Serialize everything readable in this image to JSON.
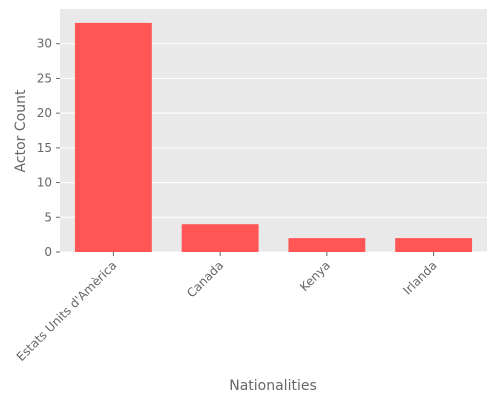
{
  "chart_data": {
    "type": "bar",
    "categories": [
      "Estats Units d'Amèrica",
      "Canada",
      "Kenya",
      "Irlanda"
    ],
    "values": [
      33,
      4,
      2,
      2
    ],
    "xlabel": "Nationalities",
    "ylabel": "Actor Count",
    "ylim": [
      0,
      35
    ],
    "yticks": [
      0,
      5,
      10,
      15,
      20,
      25,
      30
    ],
    "grid": true,
    "legend": "none",
    "colors": {
      "bar": "#ff5555",
      "plot_background": "#e9e9e9",
      "grid": "#ffffff",
      "text": "#666666"
    }
  }
}
